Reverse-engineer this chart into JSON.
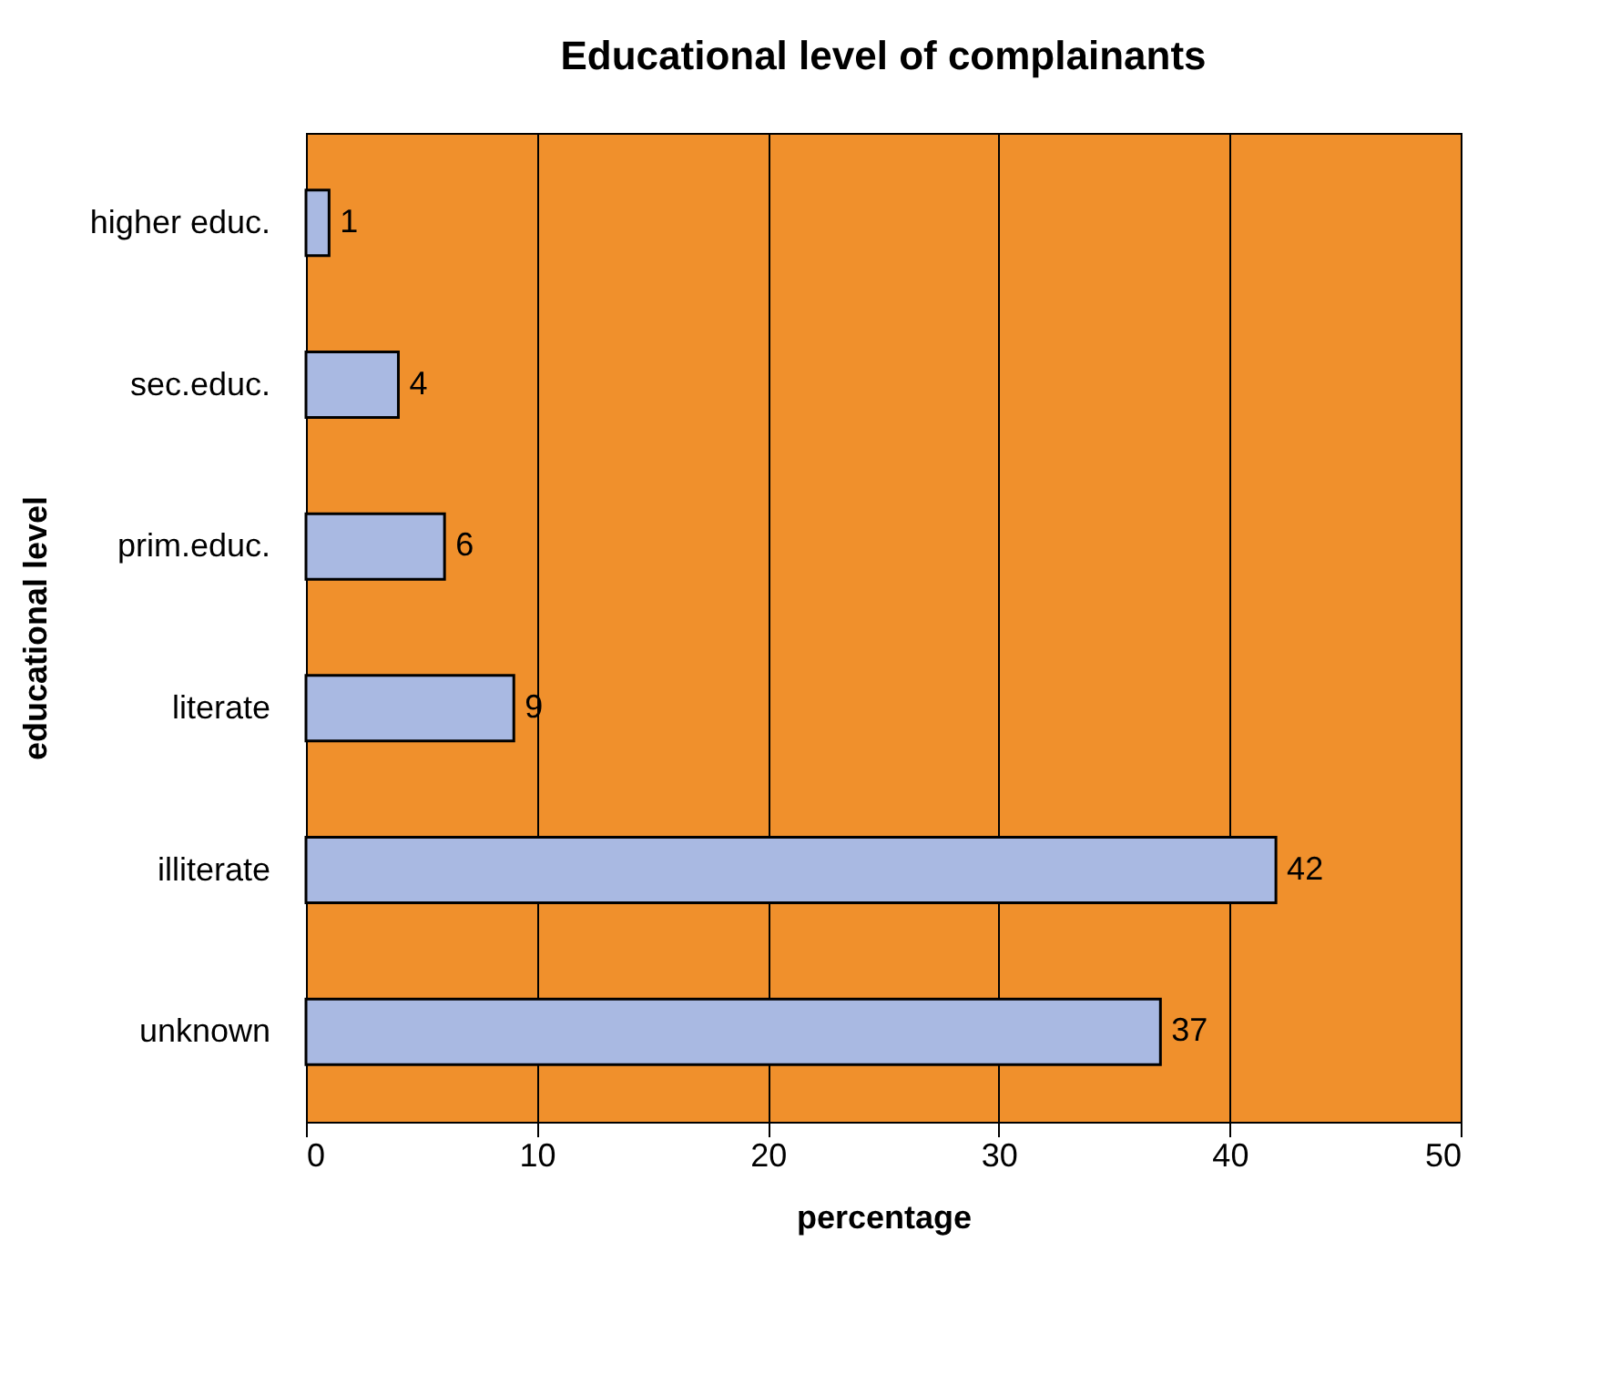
{
  "chart_data": {
    "type": "bar",
    "orientation": "horizontal",
    "title": "Educational level of complainants",
    "xlabel": "percentage",
    "ylabel": "educational level",
    "categories": [
      "higher educ.",
      "sec.educ.",
      "prim.educ.",
      "literate",
      "illiterate",
      "unknown"
    ],
    "values": [
      1,
      4,
      6,
      9,
      42,
      37
    ],
    "color": "#a9b9e2",
    "data_labels": true,
    "xlim": [
      0,
      50
    ],
    "xticks": [
      0,
      10,
      20,
      30,
      40,
      50
    ],
    "grid": "x"
  }
}
